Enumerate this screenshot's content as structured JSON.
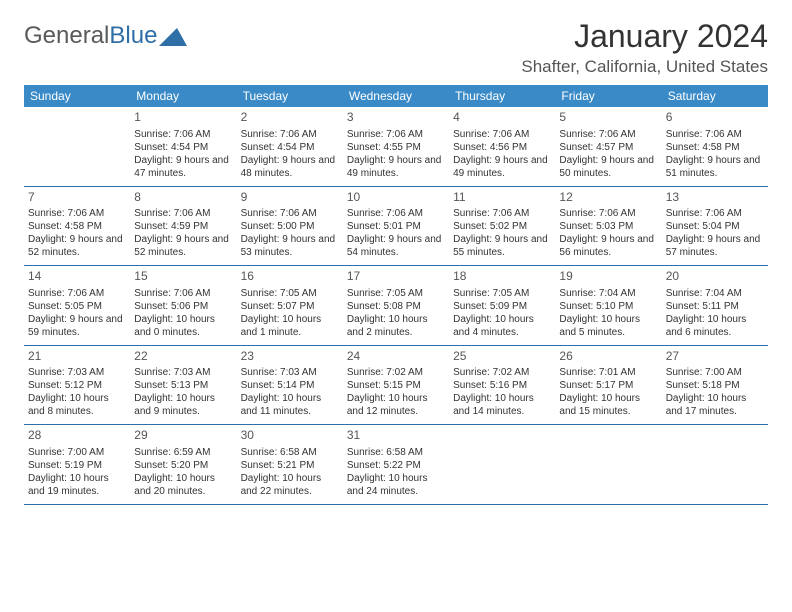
{
  "logo": {
    "text1": "General",
    "text2": "Blue"
  },
  "title": "January 2024",
  "location": "Shafter, California, United States",
  "brand_color": "#3a8ac8",
  "rule_color": "#2f6fa7",
  "weekdays": [
    "Sunday",
    "Monday",
    "Tuesday",
    "Wednesday",
    "Thursday",
    "Friday",
    "Saturday"
  ],
  "weeks": [
    [
      null,
      {
        "n": "1",
        "sr": "7:06 AM",
        "ss": "4:54 PM",
        "dl": "9 hours and 47 minutes."
      },
      {
        "n": "2",
        "sr": "7:06 AM",
        "ss": "4:54 PM",
        "dl": "9 hours and 48 minutes."
      },
      {
        "n": "3",
        "sr": "7:06 AM",
        "ss": "4:55 PM",
        "dl": "9 hours and 49 minutes."
      },
      {
        "n": "4",
        "sr": "7:06 AM",
        "ss": "4:56 PM",
        "dl": "9 hours and 49 minutes."
      },
      {
        "n": "5",
        "sr": "7:06 AM",
        "ss": "4:57 PM",
        "dl": "9 hours and 50 minutes."
      },
      {
        "n": "6",
        "sr": "7:06 AM",
        "ss": "4:58 PM",
        "dl": "9 hours and 51 minutes."
      }
    ],
    [
      {
        "n": "7",
        "sr": "7:06 AM",
        "ss": "4:58 PM",
        "dl": "9 hours and 52 minutes."
      },
      {
        "n": "8",
        "sr": "7:06 AM",
        "ss": "4:59 PM",
        "dl": "9 hours and 52 minutes."
      },
      {
        "n": "9",
        "sr": "7:06 AM",
        "ss": "5:00 PM",
        "dl": "9 hours and 53 minutes."
      },
      {
        "n": "10",
        "sr": "7:06 AM",
        "ss": "5:01 PM",
        "dl": "9 hours and 54 minutes."
      },
      {
        "n": "11",
        "sr": "7:06 AM",
        "ss": "5:02 PM",
        "dl": "9 hours and 55 minutes."
      },
      {
        "n": "12",
        "sr": "7:06 AM",
        "ss": "5:03 PM",
        "dl": "9 hours and 56 minutes."
      },
      {
        "n": "13",
        "sr": "7:06 AM",
        "ss": "5:04 PM",
        "dl": "9 hours and 57 minutes."
      }
    ],
    [
      {
        "n": "14",
        "sr": "7:06 AM",
        "ss": "5:05 PM",
        "dl": "9 hours and 59 minutes."
      },
      {
        "n": "15",
        "sr": "7:06 AM",
        "ss": "5:06 PM",
        "dl": "10 hours and 0 minutes."
      },
      {
        "n": "16",
        "sr": "7:05 AM",
        "ss": "5:07 PM",
        "dl": "10 hours and 1 minute."
      },
      {
        "n": "17",
        "sr": "7:05 AM",
        "ss": "5:08 PM",
        "dl": "10 hours and 2 minutes."
      },
      {
        "n": "18",
        "sr": "7:05 AM",
        "ss": "5:09 PM",
        "dl": "10 hours and 4 minutes."
      },
      {
        "n": "19",
        "sr": "7:04 AM",
        "ss": "5:10 PM",
        "dl": "10 hours and 5 minutes."
      },
      {
        "n": "20",
        "sr": "7:04 AM",
        "ss": "5:11 PM",
        "dl": "10 hours and 6 minutes."
      }
    ],
    [
      {
        "n": "21",
        "sr": "7:03 AM",
        "ss": "5:12 PM",
        "dl": "10 hours and 8 minutes."
      },
      {
        "n": "22",
        "sr": "7:03 AM",
        "ss": "5:13 PM",
        "dl": "10 hours and 9 minutes."
      },
      {
        "n": "23",
        "sr": "7:03 AM",
        "ss": "5:14 PM",
        "dl": "10 hours and 11 minutes."
      },
      {
        "n": "24",
        "sr": "7:02 AM",
        "ss": "5:15 PM",
        "dl": "10 hours and 12 minutes."
      },
      {
        "n": "25",
        "sr": "7:02 AM",
        "ss": "5:16 PM",
        "dl": "10 hours and 14 minutes."
      },
      {
        "n": "26",
        "sr": "7:01 AM",
        "ss": "5:17 PM",
        "dl": "10 hours and 15 minutes."
      },
      {
        "n": "27",
        "sr": "7:00 AM",
        "ss": "5:18 PM",
        "dl": "10 hours and 17 minutes."
      }
    ],
    [
      {
        "n": "28",
        "sr": "7:00 AM",
        "ss": "5:19 PM",
        "dl": "10 hours and 19 minutes."
      },
      {
        "n": "29",
        "sr": "6:59 AM",
        "ss": "5:20 PM",
        "dl": "10 hours and 20 minutes."
      },
      {
        "n": "30",
        "sr": "6:58 AM",
        "ss": "5:21 PM",
        "dl": "10 hours and 22 minutes."
      },
      {
        "n": "31",
        "sr": "6:58 AM",
        "ss": "5:22 PM",
        "dl": "10 hours and 24 minutes."
      },
      null,
      null,
      null
    ]
  ],
  "labels": {
    "sunrise": "Sunrise:",
    "sunset": "Sunset:",
    "daylight": "Daylight:"
  }
}
